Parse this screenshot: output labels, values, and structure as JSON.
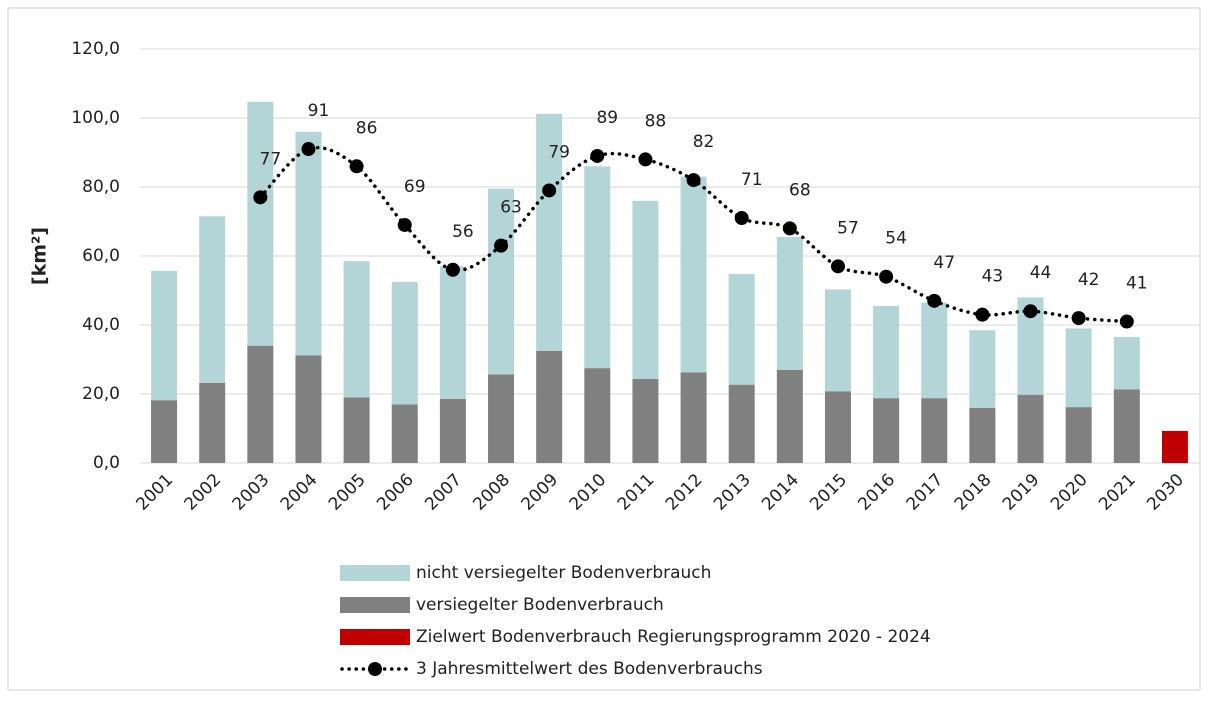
{
  "chart_data": {
    "type": "bar",
    "stacked": true,
    "y_label": "[km²]",
    "categories": [
      "2001",
      "2002",
      "2003",
      "2004",
      "2005",
      "2006",
      "2007",
      "2008",
      "2009",
      "2010",
      "2011",
      "2012",
      "2013",
      "2014",
      "2015",
      "2016",
      "2017",
      "2018",
      "2019",
      "2020",
      "2021",
      "2030"
    ],
    "series": [
      {
        "name": "nicht versiegelter Bodenverbrauch",
        "color": "#b3d5d7",
        "values": [
          37.5,
          48.3,
          70.7,
          64.8,
          39.5,
          35.5,
          38.4,
          53.8,
          68.7,
          58.5,
          51.6,
          56.7,
          32.1,
          38.5,
          29.5,
          26.7,
          27.7,
          22.5,
          28.2,
          22.8,
          15.2,
          null
        ]
      },
      {
        "name": "versiegelter Bodenverbrauch",
        "color": "#808080",
        "values": [
          18.2,
          23.2,
          34,
          31.2,
          19,
          17,
          18.6,
          25.7,
          32.5,
          27.5,
          24.4,
          26.3,
          22.7,
          27,
          20.8,
          18.8,
          18.8,
          16,
          19.8,
          16.2,
          21.3,
          null
        ]
      },
      {
        "name": "Zielwert Bodenverbrauch Regierungsprogramm 2020 - 2024",
        "color": "#c00000",
        "values": [
          null,
          null,
          null,
          null,
          null,
          null,
          null,
          null,
          null,
          null,
          null,
          null,
          null,
          null,
          null,
          null,
          null,
          null,
          null,
          null,
          null,
          9.3
        ]
      },
      {
        "name": "3 Jahresmittelwert des Bodenverbrauchs",
        "type": "line",
        "color": "#000000",
        "values": [
          null,
          null,
          77,
          91,
          86,
          69,
          56,
          63,
          79,
          89,
          88,
          82,
          71,
          68,
          57,
          54,
          47,
          43,
          44,
          42,
          41,
          null
        ]
      }
    ],
    "ylim": [
      0,
      120
    ],
    "yticks": [
      {
        "value": 0,
        "label": "0,0"
      },
      {
        "value": 20,
        "label": "20,0"
      },
      {
        "value": 40,
        "label": "40,0"
      },
      {
        "value": 60,
        "label": "60,0"
      },
      {
        "value": 80,
        "label": "80,0"
      },
      {
        "value": 100,
        "label": "100,0"
      },
      {
        "value": 120,
        "label": "120,0"
      }
    ],
    "grid": true,
    "legend": "bottom"
  }
}
